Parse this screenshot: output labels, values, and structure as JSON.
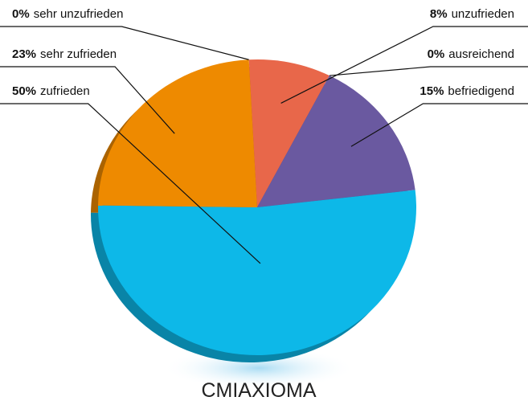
{
  "chart_data": {
    "type": "pie",
    "title": "CMIAXIOMA",
    "categories": [
      "unzufrieden",
      "ausreichend",
      "befriedigend",
      "zufrieden",
      "sehr zufrieden",
      "sehr unzufrieden"
    ],
    "values": [
      8,
      0,
      15,
      50,
      23,
      0
    ],
    "value_labels": [
      "8%",
      "0%",
      "15%",
      "50%",
      "23%",
      "0%"
    ],
    "colors": [
      "#e8674a",
      "#6a59a0",
      "#6a59a0",
      "#0db8e8",
      "#ee8a00",
      "#e8674a"
    ]
  }
}
